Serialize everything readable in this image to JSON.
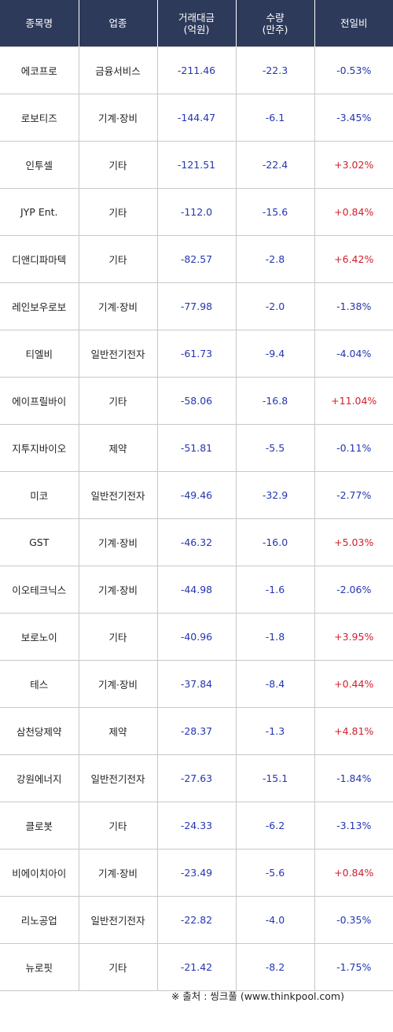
{
  "header": {
    "name": "종목명",
    "sector": "업종",
    "amount": "거래대금\n(억원)",
    "volume": "수량\n(만주)",
    "change": "전일비"
  },
  "rows": [
    {
      "name": "에코프로",
      "sector": "금융서비스",
      "amount": "-211.46",
      "volume": "-22.3",
      "change": "-0.53%"
    },
    {
      "name": "로보티즈",
      "sector": "기계·장비",
      "amount": "-144.47",
      "volume": "-6.1",
      "change": "-3.45%"
    },
    {
      "name": "인투셀",
      "sector": "기타",
      "amount": "-121.51",
      "volume": "-22.4",
      "change": "+3.02%"
    },
    {
      "name": "JYP Ent.",
      "sector": "기타",
      "amount": "-112.0",
      "volume": "-15.6",
      "change": "+0.84%"
    },
    {
      "name": "디앤디파마텍",
      "sector": "기타",
      "amount": "-82.57",
      "volume": "-2.8",
      "change": "+6.42%"
    },
    {
      "name": "레인보우로보",
      "sector": "기계·장비",
      "amount": "-77.98",
      "volume": "-2.0",
      "change": "-1.38%"
    },
    {
      "name": "티엘비",
      "sector": "일반전기전자",
      "amount": "-61.73",
      "volume": "-9.4",
      "change": "-4.04%"
    },
    {
      "name": "에이프릴바이",
      "sector": "기타",
      "amount": "-58.06",
      "volume": "-16.8",
      "change": "+11.04%"
    },
    {
      "name": "지투지바이오",
      "sector": "제약",
      "amount": "-51.81",
      "volume": "-5.5",
      "change": "-0.11%"
    },
    {
      "name": "미코",
      "sector": "일반전기전자",
      "amount": "-49.46",
      "volume": "-32.9",
      "change": "-2.77%"
    },
    {
      "name": "GST",
      "sector": "기계·장비",
      "amount": "-46.32",
      "volume": "-16.0",
      "change": "+5.03%"
    },
    {
      "name": "이오테크닉스",
      "sector": "기계·장비",
      "amount": "-44.98",
      "volume": "-1.6",
      "change": "-2.06%"
    },
    {
      "name": "보로노이",
      "sector": "기타",
      "amount": "-40.96",
      "volume": "-1.8",
      "change": "+3.95%"
    },
    {
      "name": "테스",
      "sector": "기계·장비",
      "amount": "-37.84",
      "volume": "-8.4",
      "change": "+0.44%"
    },
    {
      "name": "삼천당제약",
      "sector": "제약",
      "amount": "-28.37",
      "volume": "-1.3",
      "change": "+4.81%"
    },
    {
      "name": "강원에너지",
      "sector": "일반전기전자",
      "amount": "-27.63",
      "volume": "-15.1",
      "change": "-1.84%"
    },
    {
      "name": "클로봇",
      "sector": "기타",
      "amount": "-24.33",
      "volume": "-6.2",
      "change": "-3.13%"
    },
    {
      "name": "비에이치아이",
      "sector": "기계·장비",
      "amount": "-23.49",
      "volume": "-5.6",
      "change": "+0.84%"
    },
    {
      "name": "리노공업",
      "sector": "일반전기전자",
      "amount": "-22.82",
      "volume": "-4.0",
      "change": "-0.35%"
    },
    {
      "name": "뉴로핏",
      "sector": "기타",
      "amount": "-21.42",
      "volume": "-8.2",
      "change": "-1.75%"
    }
  ],
  "source": "※ 출처 : 씽크풀 (www.thinkpool.com)",
  "colors": {
    "header_bg": "#2e3a5a",
    "negative": "#2436b0",
    "positive": "#d0202a"
  }
}
